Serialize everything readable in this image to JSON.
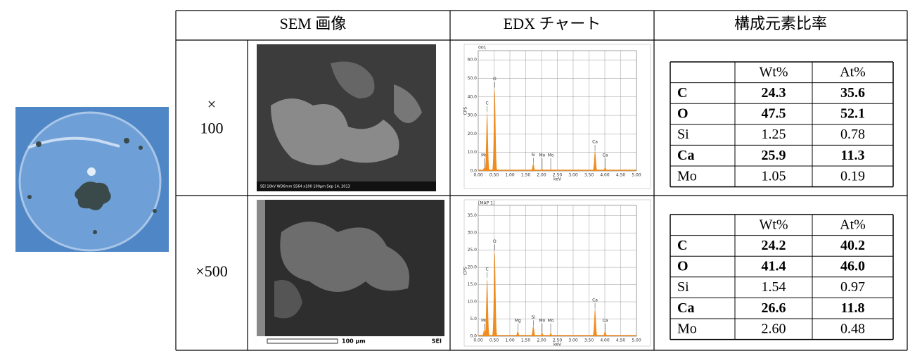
{
  "header": {
    "col_sem": "SEM 画像",
    "col_edx": "EDX チャート",
    "col_ratio": "構成元素比率"
  },
  "rows": [
    {
      "magnification": [
        "×",
        "100"
      ],
      "sem": {
        "info": "SEI 10kV WD6mm SS64 x100 100μm Sep 14, 2013"
      },
      "edx": {
        "type": "area",
        "title": "001",
        "ylabel": "CPS",
        "xlabel": "keV",
        "color": "#f08c1e",
        "grid": true,
        "xlim": [
          0,
          5
        ],
        "ylim": [
          0,
          65
        ],
        "xticks": [
          {
            "value": 0,
            "label": "0.00"
          },
          {
            "value": 0.5,
            "label": "0.50"
          },
          {
            "value": 1,
            "label": "1.00"
          },
          {
            "value": 1.5,
            "label": "1.50"
          },
          {
            "value": 2,
            "label": "2.00"
          },
          {
            "value": 2.5,
            "label": "2.50"
          },
          {
            "value": 3,
            "label": "3.00"
          },
          {
            "value": 3.5,
            "label": "3.50"
          },
          {
            "value": 4,
            "label": "4.00"
          },
          {
            "value": 4.5,
            "label": "4.50"
          },
          {
            "value": 5,
            "label": "5.00"
          }
        ],
        "yticks": [
          {
            "value": 0,
            "label": "0.0"
          },
          {
            "value": 10,
            "label": "10.0"
          },
          {
            "value": 20,
            "label": "20.0"
          },
          {
            "value": 30,
            "label": "30.0"
          },
          {
            "value": 40,
            "label": "40.0"
          },
          {
            "value": 50,
            "label": "50.0"
          },
          {
            "value": 60,
            "label": "60.0"
          }
        ],
        "peaks": [
          {
            "label": "Mo",
            "kev": 0.19,
            "cps": 2
          },
          {
            "label": "C",
            "kev": 0.28,
            "cps": 32
          },
          {
            "label": "O",
            "kev": 0.52,
            "cps": 45
          },
          {
            "label": "Si",
            "kev": 1.74,
            "cps": 4
          },
          {
            "label": "Mo",
            "kev": 2.02,
            "cps": 1
          },
          {
            "label": "Mo",
            "kev": 2.29,
            "cps": 1
          },
          {
            "label": "Ca",
            "kev": 3.69,
            "cps": 11
          },
          {
            "label": "Ca",
            "kev": 4.01,
            "cps": 2
          }
        ]
      },
      "composition": {
        "headers": [
          "Wt%",
          "At%"
        ],
        "rows": [
          {
            "element": "C",
            "wt": "24.3",
            "at": "35.6",
            "bold": true
          },
          {
            "element": "O",
            "wt": "47.5",
            "at": "52.1",
            "bold": true
          },
          {
            "element": "Si",
            "wt": "1.25",
            "at": "0.78",
            "bold": false
          },
          {
            "element": "Ca",
            "wt": "25.9",
            "at": "11.3",
            "bold": true
          },
          {
            "element": "Mo",
            "wt": "1.05",
            "at": "0.19",
            "bold": false
          }
        ]
      }
    },
    {
      "magnification": [
        "×500"
      ],
      "sem": {
        "scale": "100 µm",
        "mode": "SEI"
      },
      "edx": {
        "type": "area",
        "title": "[MAP 1]",
        "ylabel": "CPS",
        "xlabel": "keV",
        "color": "#f08c1e",
        "grid": true,
        "xlim": [
          0,
          5
        ],
        "ylim": [
          0,
          38
        ],
        "xticks": [
          {
            "value": 0,
            "label": "0.00"
          },
          {
            "value": 0.5,
            "label": "0.50"
          },
          {
            "value": 1,
            "label": "1.00"
          },
          {
            "value": 1.5,
            "label": "1.50"
          },
          {
            "value": 2,
            "label": "2.00"
          },
          {
            "value": 2.5,
            "label": "2.50"
          },
          {
            "value": 3,
            "label": "3.00"
          },
          {
            "value": 3.5,
            "label": "3.50"
          },
          {
            "value": 4,
            "label": "4.00"
          },
          {
            "value": 4.5,
            "label": "4.50"
          },
          {
            "value": 5,
            "label": "5.00"
          }
        ],
        "yticks": [
          {
            "value": 0,
            "label": "0.0"
          },
          {
            "value": 5,
            "label": "5.0"
          },
          {
            "value": 10,
            "label": "10.0"
          },
          {
            "value": 15,
            "label": "15.0"
          },
          {
            "value": 20,
            "label": "20.0"
          },
          {
            "value": 25,
            "label": "25.0"
          },
          {
            "value": 30,
            "label": "30.0"
          },
          {
            "value": 35,
            "label": "35.0"
          }
        ],
        "peaks": [
          {
            "label": "Mo",
            "kev": 0.19,
            "cps": 2
          },
          {
            "label": "C",
            "kev": 0.28,
            "cps": 17
          },
          {
            "label": "O",
            "kev": 0.52,
            "cps": 25
          },
          {
            "label": "Mg",
            "kev": 1.25,
            "cps": 1.5
          },
          {
            "label": "Si",
            "kev": 1.74,
            "cps": 3
          },
          {
            "label": "Mo",
            "kev": 2.02,
            "cps": 1
          },
          {
            "label": "Mo",
            "kev": 2.29,
            "cps": 1
          },
          {
            "label": "Ca",
            "kev": 3.69,
            "cps": 8
          },
          {
            "label": "Ca",
            "kev": 4.01,
            "cps": 1.5
          }
        ]
      },
      "composition": {
        "headers": [
          "Wt%",
          "At%"
        ],
        "rows": [
          {
            "element": "C",
            "wt": "24.2",
            "at": "40.2",
            "bold": true
          },
          {
            "element": "O",
            "wt": "41.4",
            "at": "46.0",
            "bold": true
          },
          {
            "element": "Si",
            "wt": "1.54",
            "at": "0.97",
            "bold": false
          },
          {
            "element": "Ca",
            "wt": "26.6",
            "at": "11.8",
            "bold": true
          },
          {
            "element": "Mo",
            "wt": "2.60",
            "at": "0.48",
            "bold": false
          }
        ]
      }
    }
  ]
}
